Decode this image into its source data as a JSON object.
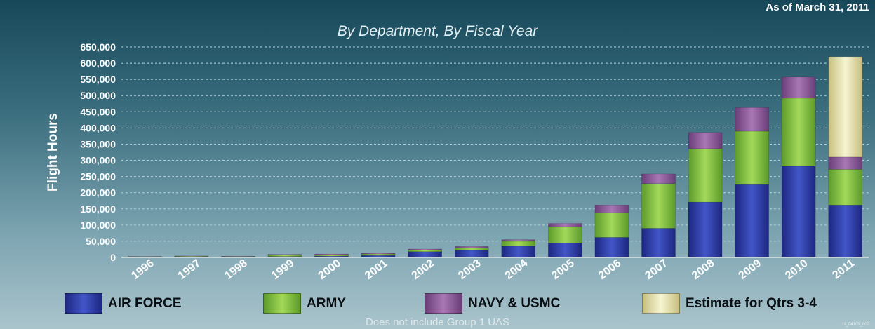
{
  "header": {
    "as_of": "As of March 31, 2011",
    "title": "By Department, By Fiscal Year"
  },
  "footer": {
    "note": "Does not include Group 1 UAS",
    "ref": "11_04105_002"
  },
  "legend": [
    {
      "label": "AIR FORCE",
      "color": "#2b3a9c"
    },
    {
      "label": "ARMY",
      "color": "#7fbf3c"
    },
    {
      "label": "NAVY & USMC",
      "color": "#8b5a9a"
    },
    {
      "label": "Estimate for Qtrs 3-4",
      "color": "#e8e3ad"
    }
  ],
  "chart_data": {
    "type": "bar",
    "stacked": true,
    "ylabel": "Flight Hours",
    "ylim": [
      0,
      650000
    ],
    "yticks": [
      "0",
      "50,000",
      "100,000",
      "150,000",
      "200,000",
      "250,000",
      "300,000",
      "350,000",
      "400,000",
      "450,000",
      "500,000",
      "550,000",
      "600,000",
      "650,000"
    ],
    "categories": [
      "1996",
      "1997",
      "1998",
      "1999",
      "2000",
      "2001",
      "2002",
      "2003",
      "2004",
      "2005",
      "2006",
      "2007",
      "2008",
      "2009",
      "2010",
      "2011"
    ],
    "grid": true,
    "legend_position": "bottom",
    "series": [
      {
        "name": "AIR FORCE",
        "color": "#2b3a9c",
        "values": [
          1000,
          1500,
          1500,
          3000,
          4000,
          6000,
          18000,
          22000,
          35000,
          45000,
          62000,
          90000,
          171000,
          225000,
          282000,
          162000
        ]
      },
      {
        "name": "ARMY",
        "color": "#7fbf3c",
        "values": [
          1500,
          2500,
          1500,
          5000,
          4500,
          5000,
          5000,
          8000,
          15000,
          50000,
          75000,
          138000,
          165000,
          165000,
          210000,
          110000
        ]
      },
      {
        "name": "NAVY & USMC",
        "color": "#8b5a9a",
        "values": [
          500,
          500,
          500,
          1500,
          2000,
          3000,
          3000,
          4000,
          5000,
          10000,
          25000,
          30000,
          50000,
          73000,
          65000,
          38000
        ]
      },
      {
        "name": "Estimate for Qtrs 3-4",
        "color": "#e8e3ad",
        "values": [
          0,
          0,
          0,
          0,
          0,
          0,
          0,
          0,
          0,
          0,
          0,
          0,
          0,
          0,
          0,
          310000
        ]
      }
    ]
  }
}
